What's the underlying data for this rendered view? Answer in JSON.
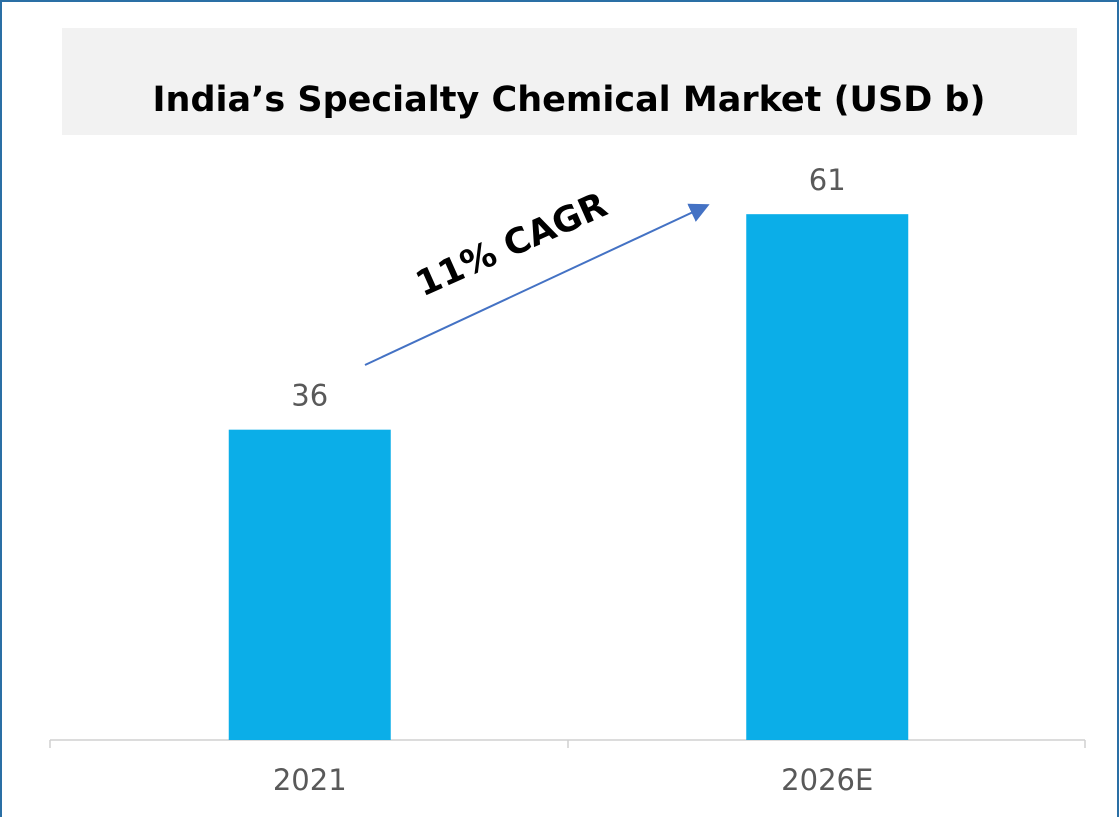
{
  "chart_data": {
    "type": "bar",
    "title": "India’s Specialty Chemical Market (USD b)",
    "categories": [
      "2021",
      "2026E"
    ],
    "values": [
      36,
      61
    ],
    "color": "#0baee8",
    "annotation": "11% CAGR"
  }
}
